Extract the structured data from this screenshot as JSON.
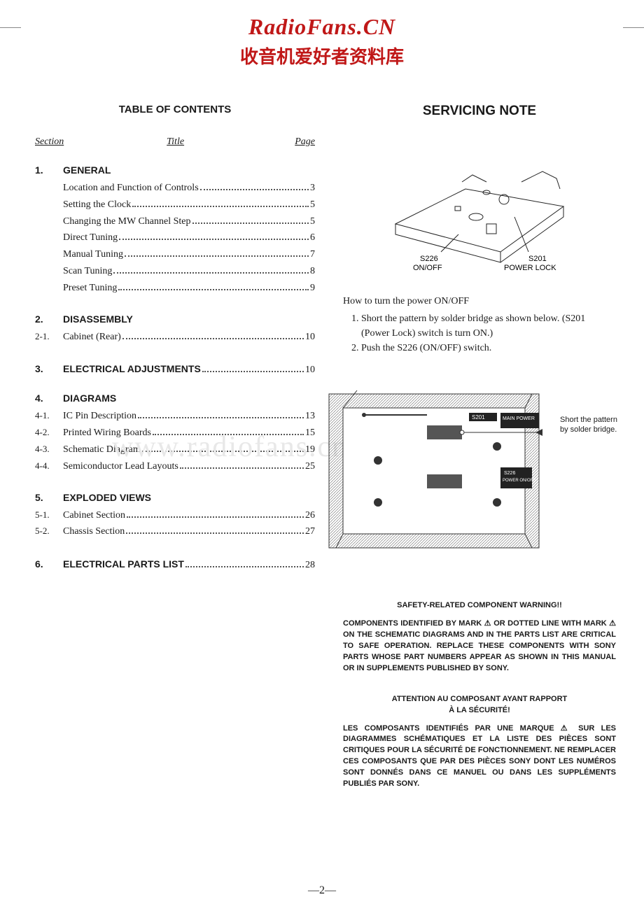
{
  "header": {
    "site_title": "RadioFans.CN",
    "site_sub": "收音机爱好者资料库"
  },
  "watermark": "www.radiofans.cn",
  "toc": {
    "heading": "TABLE OF CONTENTS",
    "col_section": "Section",
    "col_title": "Title",
    "col_page": "Page",
    "sections": [
      {
        "num": "1.",
        "title": "GENERAL",
        "items": [
          {
            "sub": "",
            "label": "Location and Function of Controls",
            "page": "3"
          },
          {
            "sub": "",
            "label": "Setting the Clock",
            "page": "5"
          },
          {
            "sub": "",
            "label": "Changing the MW Channel Step",
            "page": "5"
          },
          {
            "sub": "",
            "label": "Direct Tuning",
            "page": "6"
          },
          {
            "sub": "",
            "label": "Manual Tuning",
            "page": "7"
          },
          {
            "sub": "",
            "label": "Scan Tuning",
            "page": "8"
          },
          {
            "sub": "",
            "label": "Preset Tuning",
            "page": "9"
          }
        ]
      },
      {
        "num": "2.",
        "title": "DISASSEMBLY",
        "items": [
          {
            "sub": "2-1.",
            "label": "Cabinet (Rear)",
            "page": "10"
          }
        ]
      },
      {
        "num": "3.",
        "title": "ELECTRICAL ADJUSTMENTS",
        "inline_page": "10"
      },
      {
        "num": "4.",
        "title": "DIAGRAMS",
        "items": [
          {
            "sub": "4-1.",
            "label": "IC Pin Description",
            "page": "13"
          },
          {
            "sub": "4-2.",
            "label": "Printed Wiring Boards",
            "page": "15"
          },
          {
            "sub": "4-3.",
            "label": "Schematic Diagram",
            "page": "19"
          },
          {
            "sub": "4-4.",
            "label": "Semiconductor Lead Layouts",
            "page": "25"
          }
        ]
      },
      {
        "num": "5.",
        "title": "EXPLODED VIEWS",
        "items": [
          {
            "sub": "5-1.",
            "label": "Cabinet Section",
            "page": "26"
          },
          {
            "sub": "5-2.",
            "label": "Chassis Section",
            "page": "27"
          }
        ]
      },
      {
        "num": "6.",
        "title": "ELECTRICAL PARTS LIST",
        "inline_page": "28"
      }
    ]
  },
  "servicing": {
    "heading": "SERVICING NOTE",
    "diagram": {
      "label_s226": "S226",
      "label_onoff": "ON/OFF",
      "label_s201": "S201",
      "label_powerlock": "POWER LOCK"
    },
    "howto_title": "How to turn the power ON/OFF",
    "howto_steps": [
      "Short the pattern by solder bridge as shown below. (S201 (Power Lock) switch is turn ON.)",
      "Push the S226 (ON/OFF) switch."
    ],
    "pcb": {
      "label_s201": "S201",
      "label_main_power": "MAIN POWER",
      "label_s226": "S226",
      "label_power_onoff": "POWER ON/OFF",
      "note": "Short the pattern by solder bridge."
    }
  },
  "warning_en": {
    "title": "SAFETY-RELATED COMPONENT WARNING!!",
    "body": "COMPONENTS IDENTIFIED BY MARK ⚠ OR DOTTED LINE WITH MARK ⚠ ON THE SCHEMATIC DIAGRAMS AND IN THE PARTS LIST ARE CRITICAL TO SAFE OPERATION. REPLACE THESE COMPONENTS WITH SONY PARTS WHOSE PART NUMBERS APPEAR AS SHOWN IN THIS MANUAL OR IN SUPPLEMENTS PUBLISHED BY SONY."
  },
  "warning_fr": {
    "title1": "ATTENTION AU COMPOSANT AYANT RAPPORT",
    "title2": "À LA SÉCURITÉ!",
    "body": "LES COMPOSANTS IDENTIFIÉS PAR UNE MARQUE ⚠ SUR LES DIAGRAMMES SCHÉMATIQUES ET LA LISTE DES PIÈCES SONT CRITIQUES POUR LA SÉCURITÉ DE FONCTIONNEMENT. NE REMPLACER CES COMPOSANTS QUE PAR DES PIÈCES SONY DONT LES NUMÉROS SONT DONNÉS DANS CE MANUEL OU DANS LES SUPPLÉMENTS PUBLIÉS PAR SONY."
  },
  "page_number": "—2—"
}
